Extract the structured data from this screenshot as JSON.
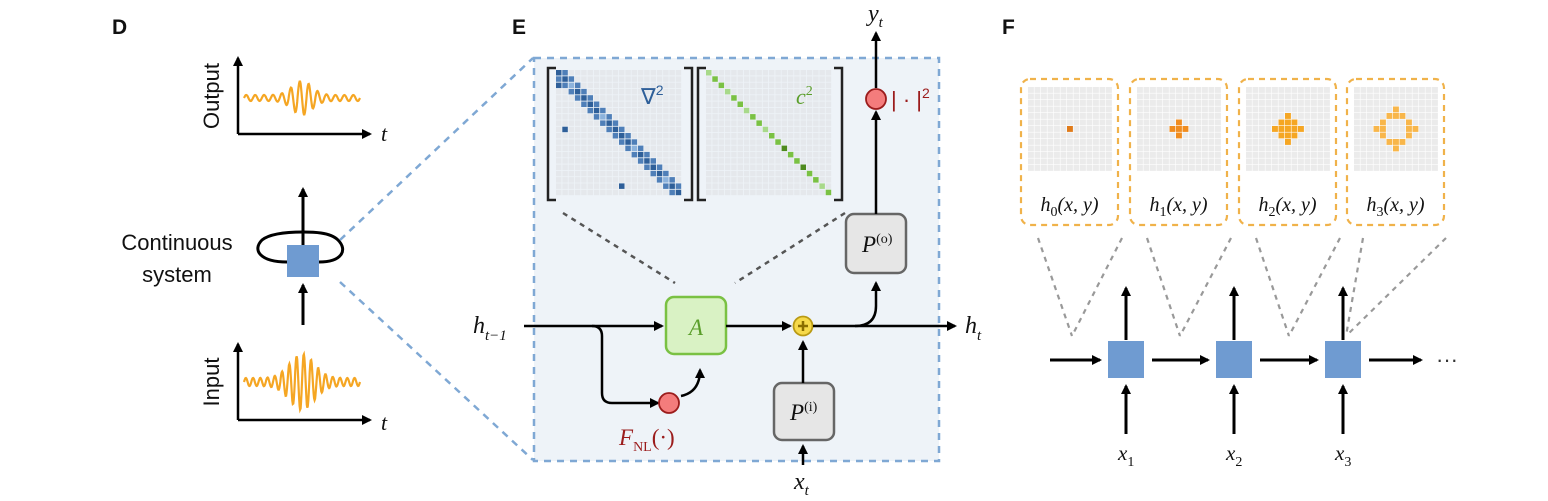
{
  "panels": {
    "d": "D",
    "e": "E",
    "f": "F"
  },
  "panel_d": {
    "output_label": "Output",
    "input_label": "Input",
    "time_label": "t",
    "system_label_line1": "Continuous",
    "system_label_line2": "system"
  },
  "panel_e": {
    "h_prev": "h",
    "h_prev_sub": "t−1",
    "h_next": "h",
    "h_next_sub": "t",
    "y_out": "y",
    "y_out_sub": "t",
    "x_in": "x",
    "x_in_sub": "t",
    "a_label": "A",
    "p_out": "P",
    "p_out_sup": "(o)",
    "p_in": "P",
    "p_in_sup": "(i)",
    "fnl": "F",
    "fnl_sub": "NL",
    "fnl_arg": "(·)",
    "abs_sq": "| · |",
    "abs_sq_sup": "2",
    "laplacian": "∇",
    "laplacian_sup": "2",
    "c_sq": "c",
    "c_sq_sup": "2"
  },
  "panel_f": {
    "hidden_states": [
      {
        "name": "h",
        "sub": "0",
        "arg": "(x, y)"
      },
      {
        "name": "h",
        "sub": "1",
        "arg": "(x, y)"
      },
      {
        "name": "h",
        "sub": "2",
        "arg": "(x, y)"
      },
      {
        "name": "h",
        "sub": "3",
        "arg": "(x, y)"
      }
    ],
    "inputs": [
      {
        "name": "x",
        "sub": "1"
      },
      {
        "name": "x",
        "sub": "2"
      },
      {
        "name": "x",
        "sub": "3"
      }
    ],
    "ellipsis": "···"
  },
  "colors": {
    "cell_blue": "#6f9bd1",
    "wave_orange": "#f5a623",
    "box_orange_border": "#f0b24a",
    "a_green_fill": "#d9f2c4",
    "a_green_border": "#7ac143",
    "nonlinear_red": "#f47c7c",
    "dark_red_text": "#9b1c1c",
    "adder_yellow": "#f6d94a",
    "panel_bg": "#eef3f8",
    "dashed_blue": "#7fa8d4"
  }
}
